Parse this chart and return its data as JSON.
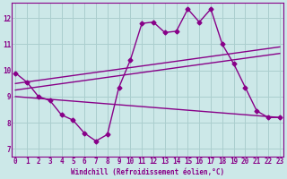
{
  "xlabel": "Windchill (Refroidissement éolien,°C)",
  "bg_color": "#cce8e8",
  "grid_color": "#aacece",
  "line_color": "#880088",
  "x_ticks": [
    0,
    1,
    2,
    3,
    4,
    5,
    6,
    7,
    8,
    9,
    10,
    11,
    12,
    13,
    14,
    15,
    16,
    17,
    18,
    19,
    20,
    21,
    22,
    23
  ],
  "y_ticks": [
    7,
    8,
    9,
    10,
    11,
    12
  ],
  "ylim": [
    6.7,
    12.6
  ],
  "xlim": [
    -0.3,
    23.3
  ],
  "series": [
    {
      "x": [
        0,
        1,
        2,
        3,
        4,
        5,
        6,
        7,
        8,
        9,
        10,
        11,
        12,
        13,
        14,
        15,
        16,
        17,
        18,
        19,
        20,
        21,
        22,
        23
      ],
      "y": [
        9.9,
        9.55,
        9.0,
        8.85,
        8.3,
        8.1,
        7.6,
        7.3,
        7.55,
        9.35,
        10.4,
        11.8,
        11.85,
        11.45,
        11.5,
        12.35,
        11.85,
        12.35,
        11.0,
        10.25,
        9.35,
        8.45,
        8.2,
        8.2
      ],
      "marker": "D",
      "markersize": 2.5,
      "linewidth": 1.0
    },
    {
      "x": [
        0,
        23
      ],
      "y": [
        9.5,
        10.9
      ],
      "marker": null,
      "linewidth": 1.0
    },
    {
      "x": [
        0,
        23
      ],
      "y": [
        9.25,
        10.65
      ],
      "marker": null,
      "linewidth": 1.0
    },
    {
      "x": [
        0,
        23
      ],
      "y": [
        9.0,
        8.2
      ],
      "marker": null,
      "linewidth": 1.0
    }
  ],
  "tick_fontsize": 5.5,
  "xlabel_fontsize": 5.5
}
